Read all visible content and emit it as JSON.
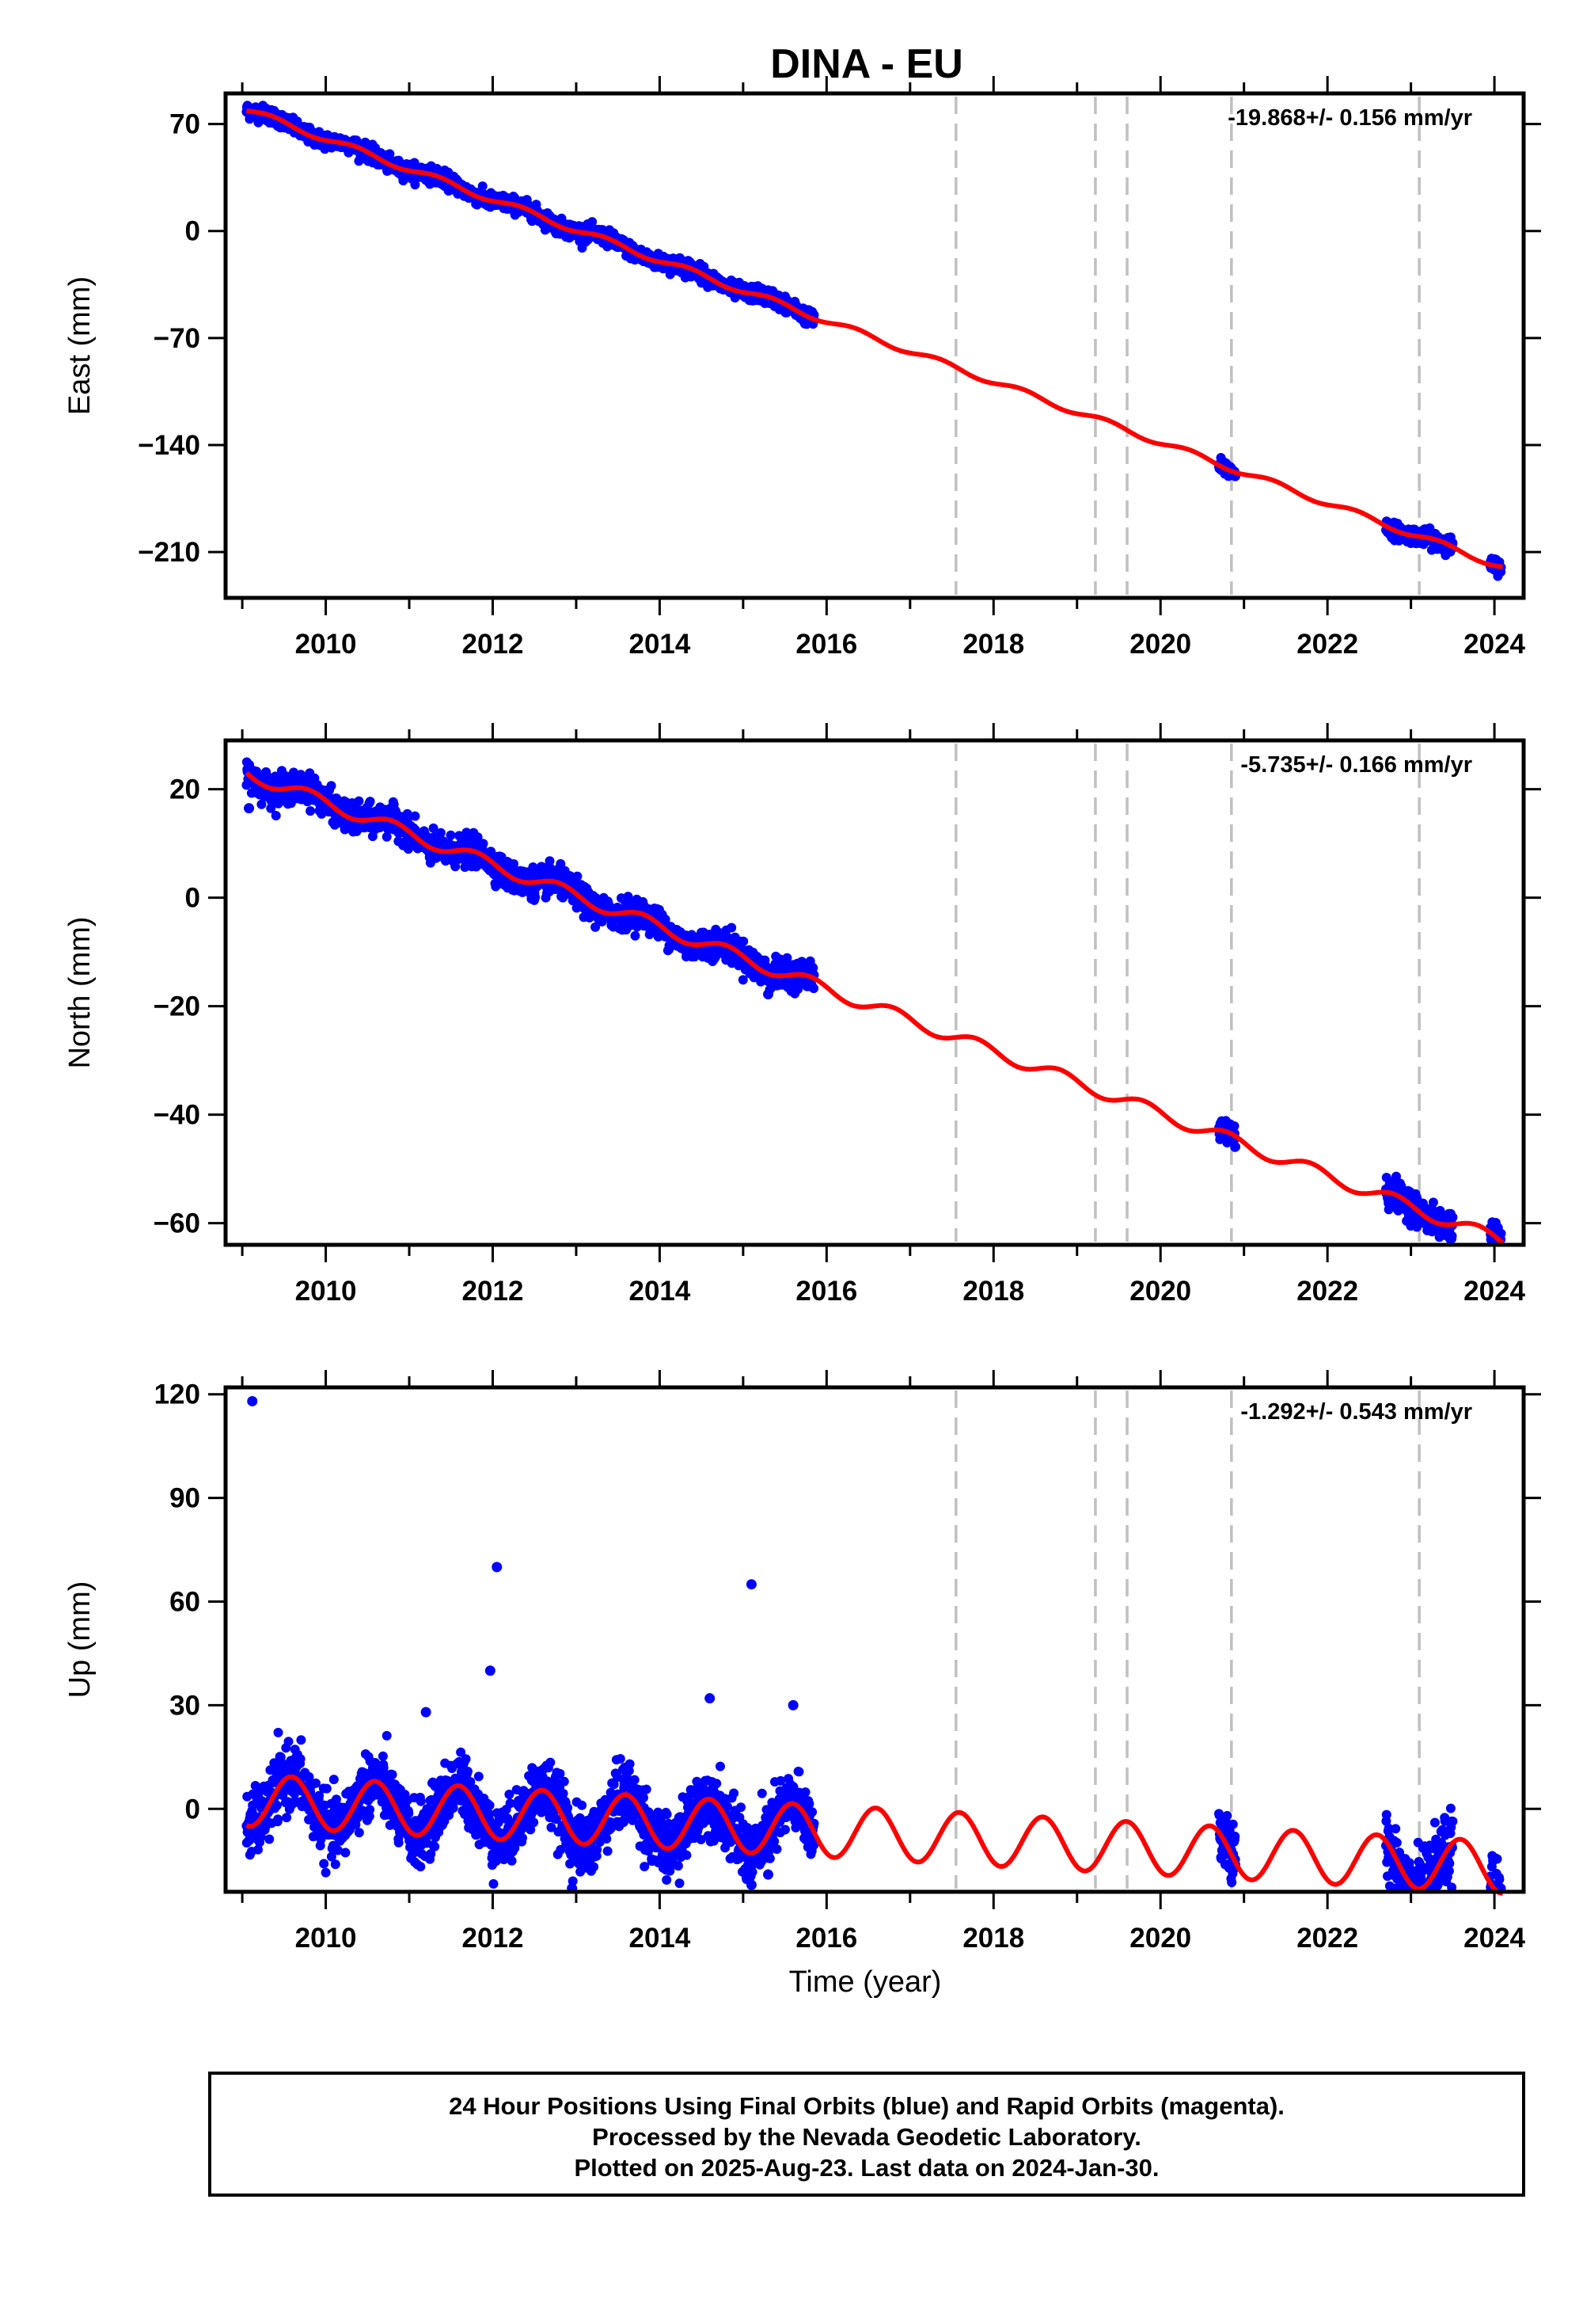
{
  "figure": {
    "title": "DINA - EU",
    "xlabel": "Time (year)",
    "footer": [
      "24 Hour Positions Using Final Orbits (blue) and Rapid Orbits (magenta).",
      "Processed by the Nevada Geodetic Laboratory.",
      "Plotted on 2025-Aug-23. Last data on 2024-Jan-30."
    ],
    "colors": {
      "data": "#0000ff",
      "model": "#ff0000",
      "events": "#c0c0c0",
      "frame": "#000000"
    },
    "event_lines": [
      2017.55,
      2019.22,
      2019.6,
      2020.85,
      2023.1
    ]
  },
  "chart_data": [
    {
      "type": "scatter",
      "component": "East",
      "ylabel": "East (mm)",
      "rate": "-19.868+/- 0.156 mm/yr",
      "xlim": [
        2008.8,
        2024.35
      ],
      "ylim": [
        -240,
        90
      ],
      "xticks": [
        2010,
        2012,
        2014,
        2016,
        2018,
        2020,
        2022,
        2024
      ],
      "yticks": [
        70,
        0,
        -70,
        -140,
        -210
      ],
      "ytick_labels": [
        "70",
        "0",
        "−70",
        "−140",
        "−210"
      ],
      "model": {
        "start": 2009.05,
        "end": 2024.1,
        "offset": 79.3,
        "rate": -19.868,
        "ann_amp": 2.0,
        "ann_phase": 0.1
      },
      "data_segments": [
        [
          2009.05,
          2015.85
        ],
        [
          2020.7,
          2020.9
        ],
        [
          2022.7,
          2023.5
        ],
        [
          2023.95,
          2024.08
        ]
      ],
      "noise": 2.5,
      "outliers": []
    },
    {
      "type": "scatter",
      "component": "North",
      "ylabel": "North (mm)",
      "rate": "-5.735+/- 0.166 mm/yr",
      "xlim": [
        2008.8,
        2024.35
      ],
      "ylim": [
        -64,
        29
      ],
      "xticks": [
        2010,
        2012,
        2014,
        2016,
        2018,
        2020,
        2022,
        2024
      ],
      "yticks": [
        20,
        0,
        -20,
        -40,
        -60
      ],
      "ytick_labels": [
        "20",
        "0",
        "−20",
        "−40",
        "−60"
      ],
      "model": {
        "start": 2009.05,
        "end": 2024.1,
        "offset": 23.0,
        "rate": -5.735,
        "ann_amp": 1.2,
        "ann_phase": 0.55
      },
      "data_segments": [
        [
          2009.05,
          2015.85
        ],
        [
          2020.7,
          2020.9
        ],
        [
          2022.7,
          2023.5
        ],
        [
          2023.95,
          2024.08
        ]
      ],
      "noise": 1.3,
      "outliers": [
        [
          2009.08,
          16.5
        ],
        [
          2015.3,
          -17.8
        ]
      ]
    },
    {
      "type": "scatter",
      "component": "Up",
      "ylabel": "Up (mm)",
      "rate": "-1.292+/- 0.543 mm/yr",
      "xlim": [
        2008.8,
        2024.35
      ],
      "ylim": [
        -24,
        122
      ],
      "xticks": [
        2010,
        2012,
        2014,
        2016,
        2018,
        2020,
        2022,
        2024
      ],
      "yticks": [
        120,
        90,
        60,
        30,
        0
      ],
      "ytick_labels": [
        "120",
        "90",
        "60",
        "30",
        "0"
      ],
      "model": {
        "start": 2009.05,
        "end": 2024.1,
        "offset": 2.5,
        "rate": -1.292,
        "ann_amp": 7.5,
        "ann_phase": 0.34
      },
      "data_segments": [
        [
          2009.05,
          2015.85
        ],
        [
          2020.7,
          2020.9
        ],
        [
          2022.7,
          2023.5
        ],
        [
          2023.95,
          2024.08
        ]
      ],
      "noise": 4.5,
      "outliers": [
        [
          2009.12,
          118
        ],
        [
          2012.05,
          70
        ],
        [
          2011.97,
          40
        ],
        [
          2015.1,
          65
        ],
        [
          2014.6,
          32
        ],
        [
          2015.6,
          30
        ],
        [
          2011.2,
          28
        ],
        [
          2015.1,
          -22
        ],
        [
          2012.95,
          -23
        ],
        [
          2015.3,
          -19
        ]
      ]
    }
  ]
}
